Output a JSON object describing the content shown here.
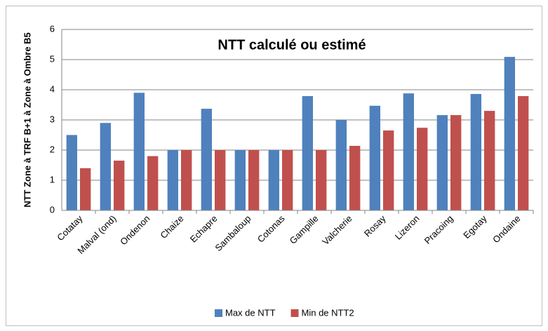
{
  "chart_data": {
    "type": "bar",
    "title": "NTT calculé ou estimé",
    "y_label": "NTT Zone à TRF B+1 à Zone à Ombre B5",
    "categories": [
      "Cotatay",
      "Malval (ond)",
      "Ondenon",
      "Chaize",
      "Echapre",
      "Sambaloup",
      "Cotonas",
      "Gampille",
      "Valcherie",
      "Rosay",
      "Lizeron",
      "Pracoing",
      "Egotay",
      "Ondaine"
    ],
    "series": [
      {
        "name": "Max de NTT",
        "color": "#4f81bd",
        "values": [
          2.5,
          2.9,
          3.9,
          2,
          3.37,
          2,
          2,
          3.79,
          3.0,
          3.47,
          3.88,
          3.16,
          3.86,
          5.09
        ]
      },
      {
        "name": "Min de NTT2",
        "color": "#c0504d",
        "values": [
          1.4,
          1.65,
          1.8,
          2,
          2,
          2,
          2,
          2,
          2.14,
          2.65,
          2.74,
          3.16,
          3.3,
          3.79
        ]
      }
    ],
    "ylim": [
      0,
      6
    ],
    "yticks": [
      0,
      1,
      2,
      3,
      4,
      5,
      6
    ],
    "grid": true,
    "legend": "bottom"
  }
}
